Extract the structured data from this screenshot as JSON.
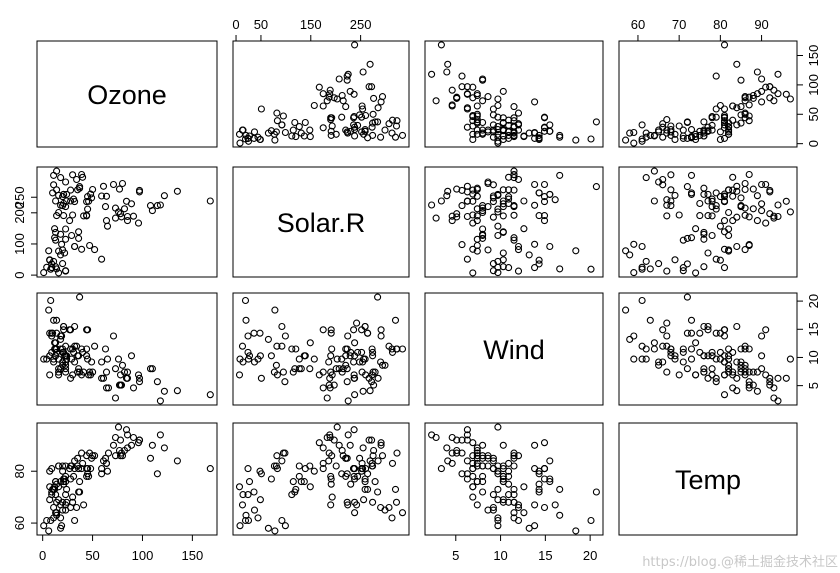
{
  "chart_data": {
    "type": "scatter",
    "title": "",
    "variables": [
      {
        "name": "Ozone",
        "range": [
          1,
          168
        ],
        "ticks": [
          0,
          50,
          100,
          150
        ],
        "tick_labels_bottom": [
          "0",
          "50",
          "100",
          "150"
        ],
        "tick_labels_right": [
          "0",
          "50",
          "100",
          "150"
        ]
      },
      {
        "name": "Solar.R",
        "range": [
          7,
          334
        ],
        "ticks": [
          0,
          50,
          150,
          250
        ],
        "tick_labels_top": [
          "0",
          "50",
          "150",
          "250"
        ],
        "tick_labels_left": [
          "0",
          "100",
          "200",
          "250"
        ],
        "left_ticks": [
          0,
          100,
          200,
          250
        ]
      },
      {
        "name": "Wind",
        "range": [
          2.3,
          20.7
        ],
        "ticks": [
          5,
          10,
          15,
          20
        ],
        "tick_labels_bottom": [
          "5",
          "10",
          "15",
          "20"
        ],
        "tick_labels_right": [
          "5",
          "10",
          "15",
          "20"
        ]
      },
      {
        "name": "Temp",
        "range": [
          57,
          97
        ],
        "ticks": [
          60,
          70,
          80,
          90
        ],
        "tick_labels_top": [
          "60",
          "70",
          "80",
          "90"
        ],
        "tick_labels_left": [
          "60",
          "80"
        ],
        "left_ticks": [
          60,
          80
        ]
      }
    ],
    "columns": [
      "Ozone",
      "Solar.R",
      "Wind",
      "Temp"
    ],
    "rows": [
      [
        41,
        190,
        7.4,
        67
      ],
      [
        36,
        118,
        8.0,
        72
      ],
      [
        12,
        149,
        12.6,
        74
      ],
      [
        18,
        313,
        11.5,
        62
      ],
      [
        28,
        null,
        14.9,
        66
      ],
      [
        23,
        299,
        8.6,
        65
      ],
      [
        19,
        99,
        13.8,
        59
      ],
      [
        8,
        19,
        20.1,
        61
      ],
      [
        7,
        null,
        6.9,
        74
      ],
      [
        16,
        256,
        9.7,
        69
      ],
      [
        11,
        290,
        9.2,
        66
      ],
      [
        14,
        274,
        10.9,
        68
      ],
      [
        18,
        65,
        13.2,
        58
      ],
      [
        14,
        334,
        11.5,
        64
      ],
      [
        34,
        307,
        12.0,
        66
      ],
      [
        6,
        78,
        18.4,
        57
      ],
      [
        30,
        322,
        11.5,
        68
      ],
      [
        11,
        44,
        9.7,
        62
      ],
      [
        1,
        8,
        9.7,
        59
      ],
      [
        11,
        320,
        16.6,
        73
      ],
      [
        4,
        25,
        9.7,
        61
      ],
      [
        32,
        92,
        12.0,
        61
      ],
      [
        23,
        13,
        12.0,
        67
      ],
      [
        45,
        252,
        14.9,
        81
      ],
      [
        115,
        223,
        5.7,
        79
      ],
      [
        37,
        279,
        7.4,
        76
      ],
      [
        29,
        127,
        9.7,
        82
      ],
      [
        71,
        291,
        13.8,
        90
      ],
      [
        39,
        323,
        11.5,
        87
      ],
      [
        23,
        148,
        8.0,
        82
      ],
      [
        21,
        191,
        14.9,
        77
      ],
      [
        37,
        284,
        20.7,
        72
      ],
      [
        20,
        37,
        9.2,
        65
      ],
      [
        12,
        120,
        11.5,
        73
      ],
      [
        13,
        137,
        10.3,
        76
      ],
      [
        135,
        269,
        4.1,
        84
      ],
      [
        49,
        248,
        9.2,
        85
      ],
      [
        32,
        236,
        9.2,
        81
      ],
      [
        64,
        175,
        4.6,
        83
      ],
      [
        40,
        314,
        10.9,
        83
      ],
      [
        77,
        276,
        5.1,
        88
      ],
      [
        97,
        267,
        6.3,
        92
      ],
      [
        97,
        272,
        5.7,
        92
      ],
      [
        85,
        175,
        7.4,
        89
      ],
      [
        10,
        264,
        14.3,
        73
      ],
      [
        27,
        175,
        14.9,
        81
      ],
      [
        7,
        48,
        14.3,
        80
      ],
      [
        48,
        260,
        6.9,
        81
      ],
      [
        35,
        274,
        10.3,
        82
      ],
      [
        61,
        285,
        6.3,
        84
      ],
      [
        79,
        187,
        5.1,
        87
      ],
      [
        63,
        220,
        11.5,
        85
      ],
      [
        16,
        7,
        6.9,
        74
      ],
      [
        80,
        294,
        8.6,
        86
      ],
      [
        108,
        223,
        8.0,
        85
      ],
      [
        20,
        81,
        8.6,
        82
      ],
      [
        52,
        82,
        12.0,
        86
      ],
      [
        82,
        213,
        7.4,
        88
      ],
      [
        50,
        275,
        7.4,
        86
      ],
      [
        64,
        253,
        7.4,
        83
      ],
      [
        59,
        254,
        9.2,
        81
      ],
      [
        39,
        83,
        6.9,
        81
      ],
      [
        9,
        24,
        13.8,
        81
      ],
      [
        16,
        77,
        7.4,
        82
      ],
      [
        78,
        null,
        6.9,
        86
      ],
      [
        35,
        null,
        7.4,
        85
      ],
      [
        66,
        null,
        4.6,
        87
      ],
      [
        122,
        255,
        4.0,
        89
      ],
      [
        89,
        229,
        10.3,
        90
      ],
      [
        110,
        207,
        8.0,
        90
      ],
      [
        44,
        192,
        11.5,
        86
      ],
      [
        28,
        273,
        11.5,
        82
      ],
      [
        65,
        157,
        9.7,
        80
      ],
      [
        22,
        71,
        10.3,
        77
      ],
      [
        59,
        51,
        6.3,
        79
      ],
      [
        23,
        115,
        7.4,
        76
      ],
      [
        31,
        244,
        10.9,
        78
      ],
      [
        44,
        190,
        10.3,
        78
      ],
      [
        21,
        259,
        15.5,
        77
      ],
      [
        9,
        36,
        14.3,
        72
      ],
      [
        45,
        212,
        9.7,
        79
      ],
      [
        168,
        238,
        3.4,
        81
      ],
      [
        73,
        215,
        8.0,
        86
      ],
      [
        76,
        203,
        9.7,
        97
      ],
      [
        118,
        225,
        2.3,
        94
      ],
      [
        84,
        237,
        6.3,
        96
      ],
      [
        85,
        188,
        6.3,
        94
      ],
      [
        96,
        167,
        6.9,
        91
      ],
      [
        78,
        197,
        5.1,
        92
      ],
      [
        73,
        183,
        2.8,
        93
      ],
      [
        91,
        189,
        4.6,
        93
      ],
      [
        47,
        95,
        7.4,
        87
      ],
      [
        32,
        92,
        15.5,
        84
      ],
      [
        20,
        252,
        10.9,
        80
      ],
      [
        23,
        220,
        10.3,
        78
      ],
      [
        21,
        230,
        10.9,
        75
      ],
      [
        24,
        259,
        9.7,
        73
      ],
      [
        44,
        236,
        14.9,
        81
      ],
      [
        21,
        259,
        15.5,
        76
      ],
      [
        28,
        238,
        6.3,
        77
      ],
      [
        9,
        24,
        10.9,
        71
      ],
      [
        13,
        112,
        11.5,
        71
      ],
      [
        46,
        237,
        6.9,
        78
      ],
      [
        18,
        224,
        13.8,
        67
      ],
      [
        13,
        27,
        10.3,
        76
      ],
      [
        24,
        238,
        10.3,
        68
      ],
      [
        16,
        201,
        8.0,
        82
      ],
      [
        13,
        238,
        12.6,
        64
      ],
      [
        23,
        14,
        9.2,
        71
      ],
      [
        36,
        139,
        10.3,
        81
      ],
      [
        7,
        49,
        10.3,
        69
      ],
      [
        14,
        20,
        16.6,
        63
      ],
      [
        30,
        193,
        6.9,
        70
      ],
      [
        14,
        191,
        14.3,
        75
      ],
      [
        18,
        131,
        8.0,
        76
      ],
      [
        20,
        223,
        11.5,
        68
      ],
      [
        null,
        186,
        9.2,
        84
      ],
      [
        null,
        220,
        8.6,
        85
      ],
      [
        null,
        264,
        14.3,
        79
      ],
      [
        null,
        127,
        8.0,
        78
      ],
      [
        null,
        273,
        6.9,
        83
      ],
      [
        null,
        291,
        14.9,
        91
      ],
      [
        null,
        98,
        5.7,
        87
      ],
      [
        null,
        242,
        16.1,
        67
      ]
    ]
  },
  "watermark": "https://blog.@稀土掘金技术社区",
  "colors": {
    "background": "#ffffff",
    "ink": "#000000",
    "watermark": "#c8c8c8"
  }
}
